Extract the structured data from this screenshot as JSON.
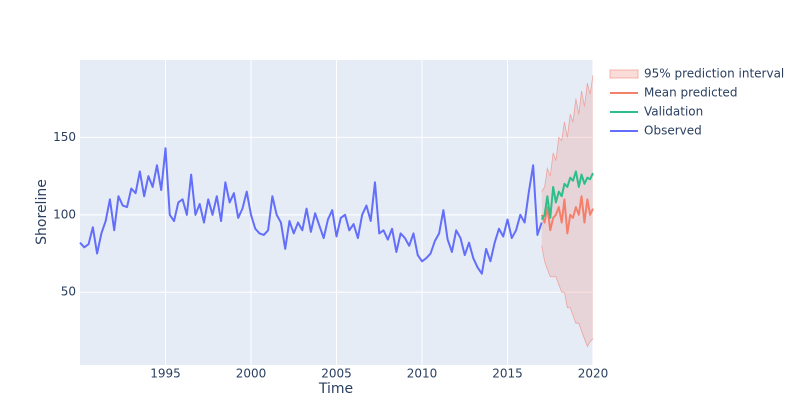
{
  "chart_data": {
    "type": "line",
    "xlabel": "Time",
    "ylabel": "Shoreline",
    "xlim": [
      1990.0,
      2020.0
    ],
    "ylim": [
      3,
      200
    ],
    "xticks": [
      1995,
      2000,
      2005,
      2010,
      2015,
      2020
    ],
    "yticks": [
      50,
      100,
      150
    ],
    "grid": true,
    "legend": "right",
    "series": [
      {
        "name": "95% prediction interval",
        "color": "#f08a80",
        "kind": "band",
        "x": [
          2017.0,
          2017.17,
          2017.33,
          2017.5,
          2017.67,
          2017.83,
          2018.0,
          2018.17,
          2018.33,
          2018.5,
          2018.67,
          2018.83,
          2019.0,
          2019.17,
          2019.33,
          2019.5,
          2019.67,
          2019.83,
          2020.0
        ],
        "upper": [
          115,
          118,
          130,
          125,
          140,
          135,
          150,
          148,
          160,
          150,
          165,
          160,
          175,
          165,
          180,
          170,
          185,
          178,
          190
        ],
        "lower": [
          80,
          70,
          65,
          60,
          60,
          60,
          55,
          50,
          50,
          40,
          40,
          35,
          30,
          30,
          25,
          20,
          15,
          18,
          20
        ]
      },
      {
        "name": "Mean predicted",
        "color": "#f4806c",
        "x": [
          2017.0,
          2017.17,
          2017.33,
          2017.5,
          2017.67,
          2017.83,
          2018.0,
          2018.17,
          2018.33,
          2018.5,
          2018.67,
          2018.83,
          2019.0,
          2019.17,
          2019.33,
          2019.5,
          2019.67,
          2019.83,
          2020.0
        ],
        "values": [
          100,
          95,
          105,
          90,
          98,
          100,
          105,
          95,
          110,
          88,
          100,
          98,
          105,
          100,
          112,
          95,
          110,
          100,
          104
        ]
      },
      {
        "name": "Validation",
        "color": "#2cbf8a",
        "x": [
          2017.0,
          2017.17,
          2017.33,
          2017.5,
          2017.67,
          2017.83,
          2018.0,
          2018.17,
          2018.33,
          2018.5,
          2018.67,
          2018.83,
          2019.0,
          2019.17,
          2019.33,
          2019.5,
          2019.67,
          2019.83,
          2020.0
        ],
        "values": [
          97,
          100,
          112,
          98,
          118,
          108,
          115,
          112,
          120,
          118,
          124,
          122,
          128,
          118,
          126,
          120,
          124,
          123,
          127
        ]
      },
      {
        "name": "Observed",
        "color": "#636efa",
        "x": [
          1990.0,
          1990.25,
          1990.5,
          1990.75,
          1991.0,
          1991.25,
          1991.5,
          1991.75,
          1992.0,
          1992.25,
          1992.5,
          1992.75,
          1993.0,
          1993.25,
          1993.5,
          1993.75,
          1994.0,
          1994.25,
          1994.5,
          1994.75,
          1995.0,
          1995.25,
          1995.5,
          1995.75,
          1996.0,
          1996.25,
          1996.5,
          1996.75,
          1997.0,
          1997.25,
          1997.5,
          1997.75,
          1998.0,
          1998.25,
          1998.5,
          1998.75,
          1999.0,
          1999.25,
          1999.5,
          1999.75,
          2000.0,
          2000.25,
          2000.5,
          2000.75,
          2001.0,
          2001.25,
          2001.5,
          2001.75,
          2002.0,
          2002.25,
          2002.5,
          2002.75,
          2003.0,
          2003.25,
          2003.5,
          2003.75,
          2004.0,
          2004.25,
          2004.5,
          2004.75,
          2005.0,
          2005.25,
          2005.5,
          2005.75,
          2006.0,
          2006.25,
          2006.5,
          2006.75,
          2007.0,
          2007.25,
          2007.5,
          2007.75,
          2008.0,
          2008.25,
          2008.5,
          2008.75,
          2009.0,
          2009.25,
          2009.5,
          2009.75,
          2010.0,
          2010.25,
          2010.5,
          2010.75,
          2011.0,
          2011.25,
          2011.5,
          2011.75,
          2012.0,
          2012.25,
          2012.5,
          2012.75,
          2013.0,
          2013.25,
          2013.5,
          2013.75,
          2014.0,
          2014.25,
          2014.5,
          2014.75,
          2015.0,
          2015.25,
          2015.5,
          2015.75,
          2016.0,
          2016.25,
          2016.5,
          2016.75,
          2017.0
        ],
        "values": [
          82,
          79,
          81,
          92,
          75,
          88,
          96,
          110,
          90,
          112,
          106,
          105,
          117,
          114,
          128,
          112,
          125,
          118,
          132,
          116,
          143,
          100,
          96,
          108,
          110,
          100,
          126,
          100,
          107,
          95,
          110,
          100,
          112,
          96,
          121,
          108,
          114,
          98,
          104,
          115,
          100,
          91,
          88,
          87,
          90,
          112,
          100,
          95,
          78,
          96,
          88,
          95,
          90,
          104,
          89,
          101,
          93,
          85,
          97,
          103,
          86,
          98,
          100,
          90,
          94,
          85,
          100,
          106,
          96,
          121,
          88,
          90,
          84,
          91,
          76,
          88,
          85,
          80,
          88,
          74,
          70,
          72,
          75,
          83,
          88,
          103,
          84,
          76,
          90,
          85,
          74,
          82,
          72,
          66,
          62,
          78,
          70,
          82,
          91,
          86,
          97,
          85,
          90,
          100,
          95,
          115,
          132,
          87,
          95
        ]
      }
    ]
  }
}
